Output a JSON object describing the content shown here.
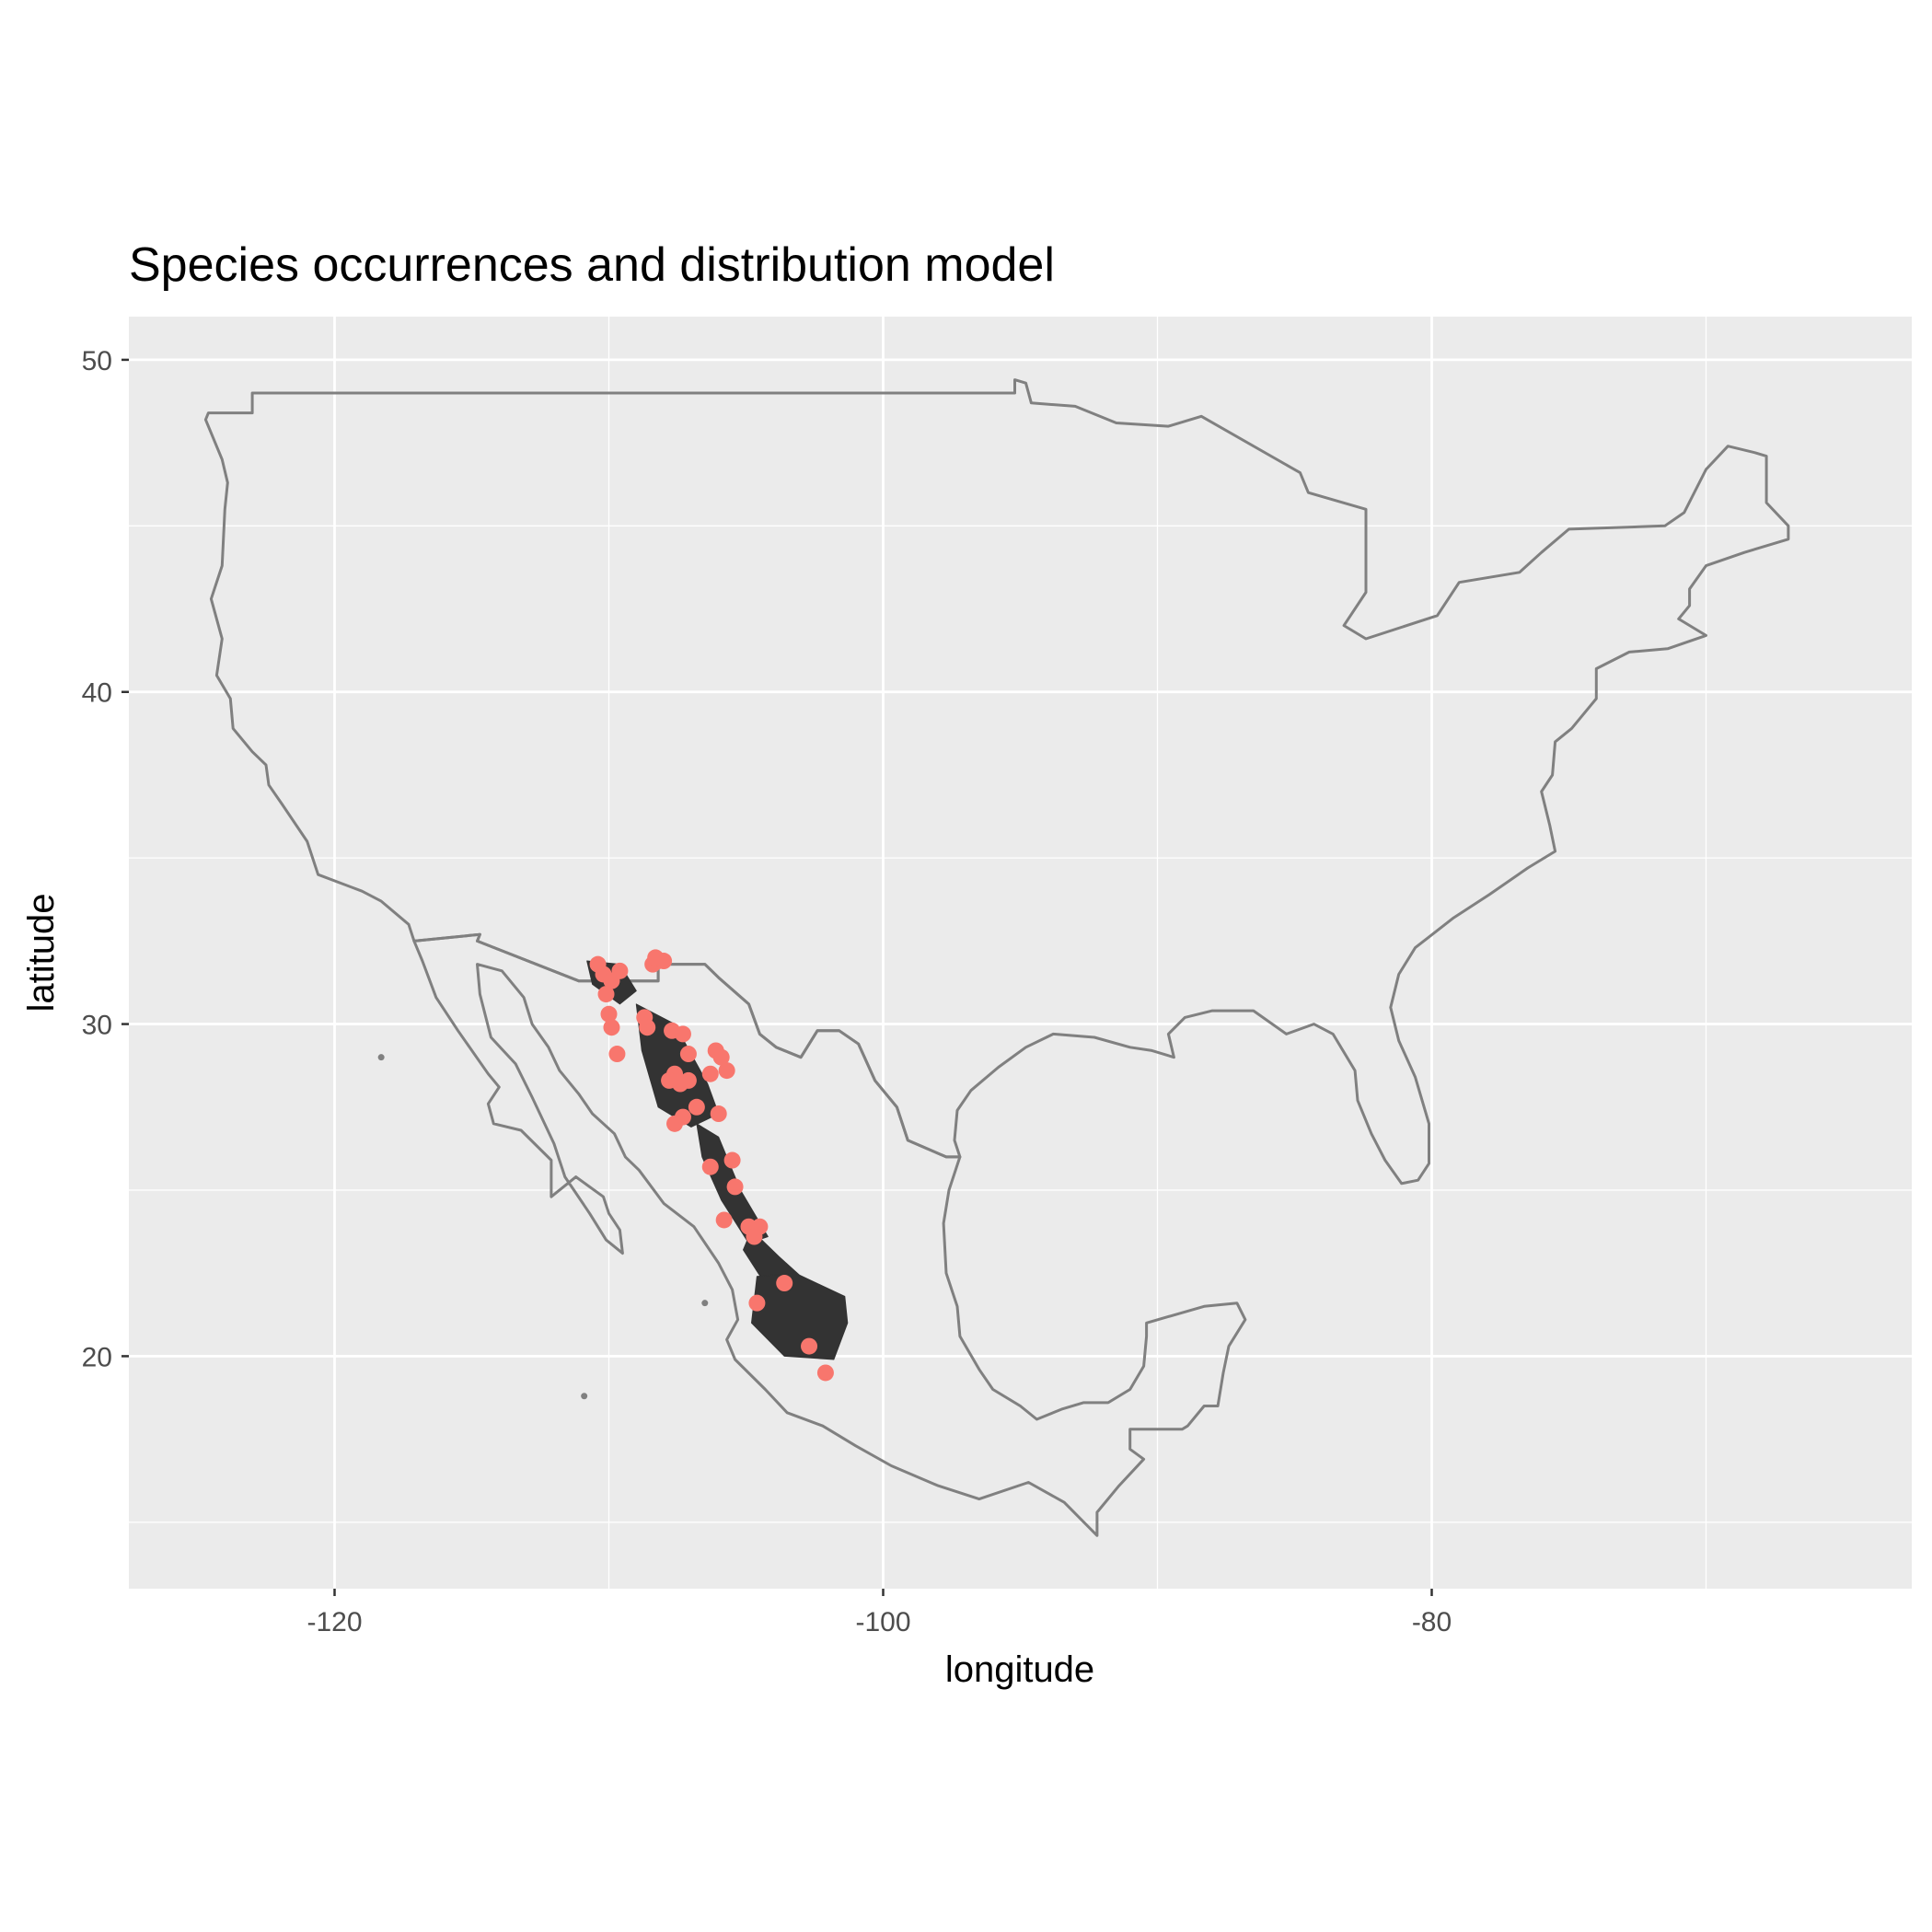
{
  "chart_data": {
    "type": "scatter",
    "title": "Species occurrences and distribution model",
    "xlabel": "longitude",
    "ylabel": "latitude",
    "xlim": [
      -127.5,
      -62.5
    ],
    "ylim": [
      13.0,
      51.3
    ],
    "x_ticks": [
      -120,
      -100,
      -80
    ],
    "y_ticks": [
      20,
      30,
      40,
      50
    ],
    "x_minor_gridlines": [
      -110,
      -90,
      -70
    ],
    "y_minor_gridlines": [
      15,
      25,
      35,
      45
    ],
    "grid": true,
    "background_color": "#ebebeb",
    "gridline_color": "#ffffff",
    "boundary_color": "#808080",
    "model_color": "#333333",
    "point_color": "#f8766d",
    "layers": [
      "country-boundaries",
      "distribution-model",
      "occurrence-points"
    ],
    "points": [
      {
        "x": -110.4,
        "y": 31.8
      },
      {
        "x": -110.2,
        "y": 31.5
      },
      {
        "x": -109.9,
        "y": 31.3
      },
      {
        "x": -109.6,
        "y": 31.6
      },
      {
        "x": -110.1,
        "y": 30.9
      },
      {
        "x": -108.4,
        "y": 31.8
      },
      {
        "x": -108.2,
        "y": 31.9
      },
      {
        "x": -108.0,
        "y": 31.9
      },
      {
        "x": -108.3,
        "y": 32.0
      },
      {
        "x": -110.0,
        "y": 30.3
      },
      {
        "x": -109.9,
        "y": 29.9
      },
      {
        "x": -108.7,
        "y": 30.2
      },
      {
        "x": -108.6,
        "y": 29.9
      },
      {
        "x": -109.7,
        "y": 29.1
      },
      {
        "x": -107.7,
        "y": 29.8
      },
      {
        "x": -107.3,
        "y": 29.7
      },
      {
        "x": -107.6,
        "y": 28.5
      },
      {
        "x": -107.8,
        "y": 28.3
      },
      {
        "x": -107.4,
        "y": 28.2
      },
      {
        "x": -107.1,
        "y": 28.3
      },
      {
        "x": -107.1,
        "y": 29.1
      },
      {
        "x": -106.3,
        "y": 28.5
      },
      {
        "x": -106.1,
        "y": 29.2
      },
      {
        "x": -105.9,
        "y": 29.0
      },
      {
        "x": -105.7,
        "y": 28.6
      },
      {
        "x": -106.8,
        "y": 27.5
      },
      {
        "x": -107.3,
        "y": 27.2
      },
      {
        "x": -107.6,
        "y": 27.0
      },
      {
        "x": -106.0,
        "y": 27.3
      },
      {
        "x": -106.3,
        "y": 25.7
      },
      {
        "x": -105.5,
        "y": 25.9
      },
      {
        "x": -105.4,
        "y": 25.1
      },
      {
        "x": -105.8,
        "y": 24.1
      },
      {
        "x": -104.9,
        "y": 23.9
      },
      {
        "x": -104.7,
        "y": 23.6
      },
      {
        "x": -104.5,
        "y": 23.9
      },
      {
        "x": -103.6,
        "y": 22.2
      },
      {
        "x": -104.6,
        "y": 21.6
      },
      {
        "x": -102.7,
        "y": 20.3
      },
      {
        "x": -102.1,
        "y": 19.5
      }
    ],
    "model_regions": [
      {
        "name": "sonora-chihuahua-border",
        "polygon": [
          [
            -110.8,
            31.9
          ],
          [
            -109.6,
            31.8
          ],
          [
            -109.0,
            31.0
          ],
          [
            -109.6,
            30.6
          ],
          [
            -110.6,
            31.2
          ]
        ]
      },
      {
        "name": "sierra-madre-north",
        "polygon": [
          [
            -109.0,
            30.6
          ],
          [
            -107.6,
            30.0
          ],
          [
            -106.4,
            28.2
          ],
          [
            -106.0,
            27.3
          ],
          [
            -107.0,
            26.9
          ],
          [
            -108.2,
            27.5
          ],
          [
            -108.8,
            29.2
          ]
        ]
      },
      {
        "name": "sierra-madre-central",
        "polygon": [
          [
            -106.8,
            27.0
          ],
          [
            -106.0,
            26.6
          ],
          [
            -105.2,
            25.0
          ],
          [
            -104.2,
            23.6
          ],
          [
            -104.9,
            23.4
          ],
          [
            -105.9,
            24.7
          ],
          [
            -106.6,
            26.0
          ]
        ]
      },
      {
        "name": "durango-zacatecas",
        "polygon": [
          [
            -104.8,
            23.8
          ],
          [
            -103.8,
            23.0
          ],
          [
            -103.0,
            22.4
          ],
          [
            -103.3,
            21.8
          ],
          [
            -104.4,
            22.3
          ],
          [
            -105.1,
            23.2
          ]
        ]
      },
      {
        "name": "jalisco-michoacan",
        "polygon": [
          [
            -104.6,
            22.4
          ],
          [
            -103.2,
            22.5
          ],
          [
            -101.4,
            21.8
          ],
          [
            -101.3,
            21.0
          ],
          [
            -101.8,
            19.9
          ],
          [
            -103.6,
            20.0
          ],
          [
            -104.8,
            21.0
          ]
        ]
      }
    ],
    "boundaries": [
      {
        "name": "usa-mainland",
        "polygon": [
          [
            -124.6,
            48.4
          ],
          [
            -123.0,
            48.4
          ],
          [
            -123.0,
            49.0
          ],
          [
            -95.2,
            49.0
          ],
          [
            -95.2,
            49.4
          ],
          [
            -94.8,
            49.3
          ],
          [
            -94.6,
            48.7
          ],
          [
            -93.0,
            48.6
          ],
          [
            -91.5,
            48.1
          ],
          [
            -89.6,
            48.0
          ],
          [
            -88.4,
            48.3
          ],
          [
            -84.8,
            46.6
          ],
          [
            -84.5,
            46.0
          ],
          [
            -82.4,
            45.5
          ],
          [
            -82.4,
            43.0
          ],
          [
            -83.2,
            42.0
          ],
          [
            -82.4,
            41.6
          ],
          [
            -79.8,
            42.3
          ],
          [
            -79.0,
            43.3
          ],
          [
            -76.8,
            43.6
          ],
          [
            -76.0,
            44.2
          ],
          [
            -75.0,
            44.9
          ],
          [
            -71.5,
            45.0
          ],
          [
            -70.8,
            45.4
          ],
          [
            -70.0,
            46.7
          ],
          [
            -69.2,
            47.4
          ],
          [
            -68.2,
            47.2
          ],
          [
            -67.8,
            47.1
          ],
          [
            -67.8,
            45.7
          ],
          [
            -67.0,
            45.0
          ],
          [
            -67.0,
            44.6
          ],
          [
            -68.6,
            44.2
          ],
          [
            -70.0,
            43.8
          ],
          [
            -70.6,
            43.1
          ],
          [
            -70.6,
            42.6
          ],
          [
            -71.0,
            42.2
          ],
          [
            -70.0,
            41.7
          ],
          [
            -71.4,
            41.3
          ],
          [
            -72.8,
            41.2
          ],
          [
            -74.0,
            40.7
          ],
          [
            -74.0,
            39.8
          ],
          [
            -74.9,
            38.9
          ],
          [
            -75.5,
            38.5
          ],
          [
            -75.6,
            37.5
          ],
          [
            -76.0,
            37.0
          ],
          [
            -75.7,
            36.0
          ],
          [
            -75.5,
            35.2
          ],
          [
            -76.5,
            34.7
          ],
          [
            -77.9,
            33.9
          ],
          [
            -79.2,
            33.2
          ],
          [
            -80.6,
            32.3
          ],
          [
            -81.2,
            31.5
          ],
          [
            -81.5,
            30.5
          ],
          [
            -81.2,
            29.5
          ],
          [
            -80.6,
            28.4
          ],
          [
            -80.1,
            27.0
          ],
          [
            -80.1,
            25.8
          ],
          [
            -80.5,
            25.3
          ],
          [
            -81.1,
            25.2
          ],
          [
            -81.7,
            25.9
          ],
          [
            -82.2,
            26.7
          ],
          [
            -82.7,
            27.7
          ],
          [
            -82.8,
            28.6
          ],
          [
            -83.6,
            29.7
          ],
          [
            -84.3,
            30.0
          ],
          [
            -85.3,
            29.7
          ],
          [
            -86.5,
            30.4
          ],
          [
            -88.0,
            30.4
          ],
          [
            -89.0,
            30.2
          ],
          [
            -89.6,
            29.7
          ],
          [
            -89.4,
            29.0
          ],
          [
            -90.2,
            29.2
          ],
          [
            -91.0,
            29.3
          ],
          [
            -92.3,
            29.6
          ],
          [
            -93.8,
            29.7
          ],
          [
            -94.8,
            29.3
          ],
          [
            -95.8,
            28.7
          ],
          [
            -96.8,
            28.0
          ],
          [
            -97.3,
            27.4
          ],
          [
            -97.4,
            26.5
          ],
          [
            -97.2,
            26.0
          ],
          [
            -97.7,
            26.0
          ],
          [
            -99.1,
            26.5
          ],
          [
            -99.5,
            27.5
          ],
          [
            -100.3,
            28.3
          ],
          [
            -100.9,
            29.4
          ],
          [
            -101.6,
            29.8
          ],
          [
            -102.4,
            29.8
          ],
          [
            -103.0,
            29.0
          ],
          [
            -103.9,
            29.3
          ],
          [
            -104.5,
            29.7
          ],
          [
            -104.9,
            30.6
          ],
          [
            -106.0,
            31.4
          ],
          [
            -106.5,
            31.8
          ],
          [
            -108.2,
            31.8
          ],
          [
            -108.2,
            31.3
          ],
          [
            -111.1,
            31.3
          ],
          [
            -114.8,
            32.5
          ],
          [
            -114.7,
            32.7
          ],
          [
            -117.1,
            32.5
          ],
          [
            -117.3,
            33.0
          ],
          [
            -118.3,
            33.7
          ],
          [
            -119.0,
            34.0
          ],
          [
            -120.6,
            34.5
          ],
          [
            -121.0,
            35.5
          ],
          [
            -121.9,
            36.6
          ],
          [
            -122.4,
            37.2
          ],
          [
            -122.5,
            37.8
          ],
          [
            -123.0,
            38.2
          ],
          [
            -123.7,
            38.9
          ],
          [
            -123.8,
            39.8
          ],
          [
            -124.3,
            40.5
          ],
          [
            -124.1,
            41.6
          ],
          [
            -124.5,
            42.8
          ],
          [
            -124.1,
            43.8
          ],
          [
            -124.0,
            45.5
          ],
          [
            -123.9,
            46.3
          ],
          [
            -124.1,
            47.0
          ],
          [
            -124.7,
            48.2
          ],
          [
            -124.6,
            48.4
          ]
        ]
      },
      {
        "name": "mexico-mainland",
        "polygon": [
          [
            -117.1,
            32.5
          ],
          [
            -114.7,
            32.7
          ],
          [
            -114.8,
            32.5
          ],
          [
            -111.1,
            31.3
          ],
          [
            -108.2,
            31.3
          ],
          [
            -108.2,
            31.8
          ],
          [
            -106.5,
            31.8
          ],
          [
            -106.0,
            31.4
          ],
          [
            -104.9,
            30.6
          ],
          [
            -104.5,
            29.7
          ],
          [
            -103.9,
            29.3
          ],
          [
            -103.0,
            29.0
          ],
          [
            -102.4,
            29.8
          ],
          [
            -101.6,
            29.8
          ],
          [
            -100.9,
            29.4
          ],
          [
            -100.3,
            28.3
          ],
          [
            -99.5,
            27.5
          ],
          [
            -99.1,
            26.5
          ],
          [
            -97.7,
            26.0
          ],
          [
            -97.2,
            26.0
          ],
          [
            -97.6,
            25.0
          ],
          [
            -97.8,
            24.0
          ],
          [
            -97.7,
            22.5
          ],
          [
            -97.3,
            21.5
          ],
          [
            -97.2,
            20.6
          ],
          [
            -96.5,
            19.6
          ],
          [
            -96.0,
            19.0
          ],
          [
            -95.0,
            18.5
          ],
          [
            -94.4,
            18.1
          ],
          [
            -93.5,
            18.4
          ],
          [
            -92.7,
            18.6
          ],
          [
            -91.8,
            18.6
          ],
          [
            -91.0,
            19.0
          ],
          [
            -90.5,
            19.7
          ],
          [
            -90.4,
            20.6
          ],
          [
            -90.4,
            21.0
          ],
          [
            -88.3,
            21.5
          ],
          [
            -87.1,
            21.6
          ],
          [
            -86.8,
            21.1
          ],
          [
            -87.4,
            20.3
          ],
          [
            -87.6,
            19.5
          ],
          [
            -87.8,
            18.5
          ],
          [
            -88.3,
            18.5
          ],
          [
            -88.9,
            17.9
          ],
          [
            -89.1,
            17.8
          ],
          [
            -91.0,
            17.8
          ],
          [
            -91.0,
            17.2
          ],
          [
            -90.5,
            16.9
          ],
          [
            -91.4,
            16.1
          ],
          [
            -92.2,
            15.3
          ],
          [
            -92.2,
            14.6
          ],
          [
            -93.4,
            15.6
          ],
          [
            -94.7,
            16.2
          ],
          [
            -96.5,
            15.7
          ],
          [
            -98.0,
            16.1
          ],
          [
            -99.7,
            16.7
          ],
          [
            -101.0,
            17.3
          ],
          [
            -102.2,
            17.9
          ],
          [
            -103.5,
            18.3
          ],
          [
            -104.3,
            19.0
          ],
          [
            -105.4,
            19.9
          ],
          [
            -105.7,
            20.5
          ],
          [
            -105.3,
            21.1
          ],
          [
            -105.5,
            22.0
          ],
          [
            -106.0,
            22.8
          ],
          [
            -106.9,
            23.9
          ],
          [
            -108.0,
            24.6
          ],
          [
            -108.9,
            25.6
          ],
          [
            -109.4,
            26.0
          ],
          [
            -109.8,
            26.7
          ],
          [
            -110.6,
            27.3
          ],
          [
            -111.1,
            27.9
          ],
          [
            -111.8,
            28.6
          ],
          [
            -112.2,
            29.3
          ],
          [
            -112.8,
            30.0
          ],
          [
            -113.1,
            30.8
          ],
          [
            -113.9,
            31.6
          ],
          [
            -114.8,
            31.8
          ],
          [
            -114.7,
            30.9
          ],
          [
            -114.3,
            29.6
          ],
          [
            -113.4,
            28.8
          ],
          [
            -112.8,
            27.8
          ],
          [
            -112.0,
            26.4
          ],
          [
            -111.6,
            25.4
          ],
          [
            -110.7,
            24.3
          ],
          [
            -110.1,
            23.5
          ],
          [
            -109.5,
            23.1
          ],
          [
            -109.6,
            23.8
          ],
          [
            -110.0,
            24.3
          ],
          [
            -110.2,
            24.8
          ],
          [
            -111.2,
            25.4
          ],
          [
            -112.1,
            24.8
          ],
          [
            -112.1,
            25.9
          ],
          [
            -113.2,
            26.8
          ],
          [
            -114.2,
            27.0
          ],
          [
            -114.4,
            27.6
          ],
          [
            -114.0,
            28.1
          ],
          [
            -114.4,
            28.5
          ],
          [
            -115.5,
            29.8
          ],
          [
            -116.3,
            30.8
          ],
          [
            -116.8,
            31.9
          ],
          [
            -117.1,
            32.5
          ]
        ]
      }
    ],
    "islands": [
      {
        "name": "guadalupe-island",
        "x": -118.3,
        "y": 29.0
      },
      {
        "name": "socorro-island",
        "x": -110.9,
        "y": 18.8
      },
      {
        "name": "tres-marias-islands",
        "x": -106.5,
        "y": 21.6
      }
    ]
  }
}
